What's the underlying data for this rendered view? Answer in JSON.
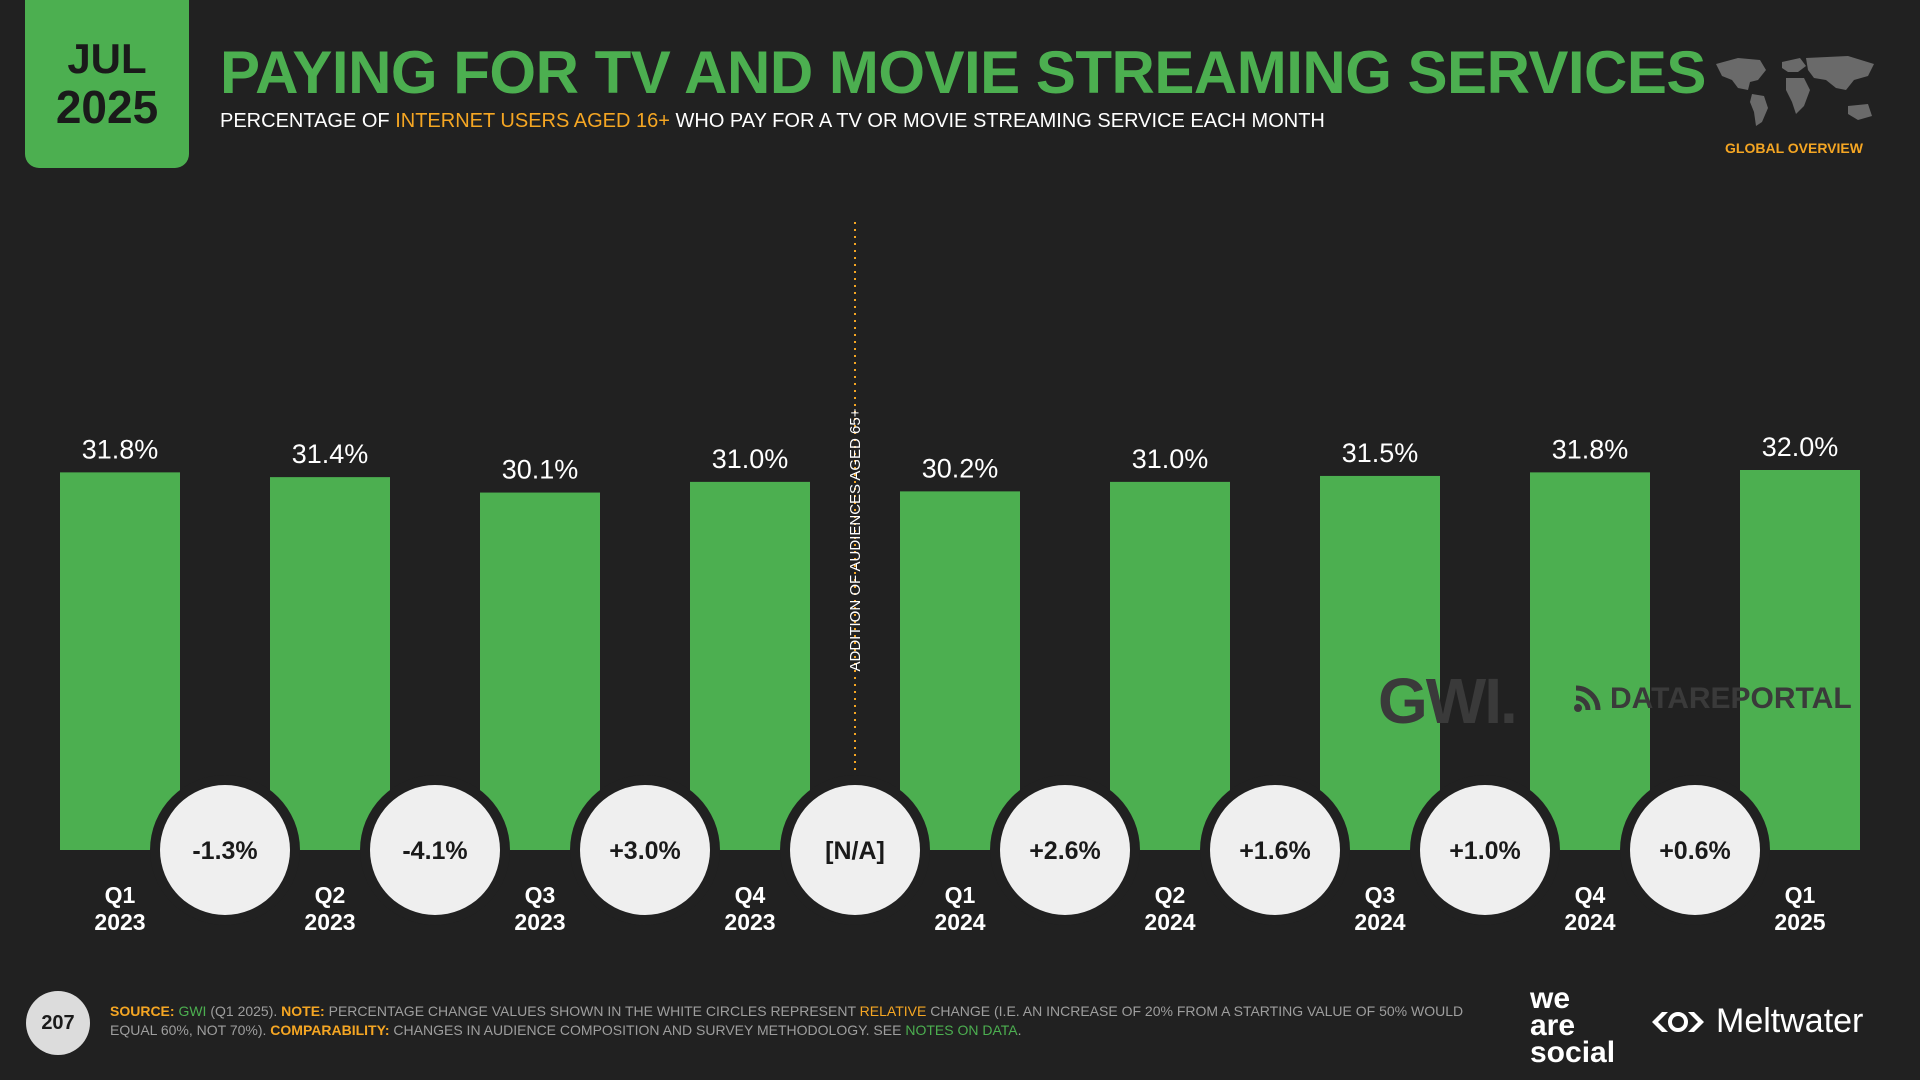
{
  "badge": {
    "month": "JUL",
    "year": "2025"
  },
  "header": {
    "title": "PAYING FOR TV AND MOVIE STREAMING SERVICES",
    "subtitle_pre": "PERCENTAGE OF ",
    "subtitle_highlight": "INTERNET USERS AGED 16+",
    "subtitle_post": " WHO PAY FOR A TV OR MOVIE STREAMING SERVICE EACH MONTH",
    "global_label": "GLOBAL OVERVIEW"
  },
  "chart_data": {
    "type": "bar",
    "categories": [
      "Q1 2023",
      "Q2 2023",
      "Q3 2023",
      "Q4 2023",
      "Q1 2024",
      "Q2 2024",
      "Q3 2024",
      "Q4 2024",
      "Q1 2025"
    ],
    "category_lines": [
      [
        "Q1",
        "2023"
      ],
      [
        "Q2",
        "2023"
      ],
      [
        "Q3",
        "2023"
      ],
      [
        "Q4",
        "2023"
      ],
      [
        "Q1",
        "2024"
      ],
      [
        "Q2",
        "2024"
      ],
      [
        "Q3",
        "2024"
      ],
      [
        "Q4",
        "2024"
      ],
      [
        "Q1",
        "2025"
      ]
    ],
    "values": [
      31.8,
      31.4,
      30.1,
      31.0,
      30.2,
      31.0,
      31.5,
      31.8,
      32.0
    ],
    "value_labels": [
      "31.8%",
      "31.4%",
      "30.1%",
      "31.0%",
      "30.2%",
      "31.0%",
      "31.5%",
      "31.8%",
      "32.0%"
    ],
    "changes": [
      "-1.3%",
      "-4.1%",
      "+3.0%",
      "[N/A]",
      "+2.6%",
      "+1.6%",
      "+1.0%",
      "+0.6%"
    ],
    "divider_note": "ADDITION OF AUDIENCES AGED 65+",
    "ylim": [
      0,
      32.0
    ],
    "bar_color": "#4caf50"
  },
  "watermarks": {
    "gwi": "GWI.",
    "datareportal": "DATAREPORTAL"
  },
  "footer": {
    "page_number": "207",
    "source_label": "SOURCE:",
    "source_name": "GWI",
    "source_rest": " (Q1 2025). ",
    "note_label": "NOTE:",
    "note_pre": " PERCENTAGE CHANGE VALUES SHOWN IN THE WHITE CIRCLES REPRESENT ",
    "note_highlight": "RELATIVE",
    "note_post": " CHANGE (I.E. AN INCREASE OF 20% FROM A STARTING VALUE OF 50% WOULD EQUAL 60%, NOT 70%). ",
    "comp_label": "COMPARABILITY:",
    "comp_text": " CHANGES IN AUDIENCE COMPOSITION AND SURVEY METHODOLOGY. SEE ",
    "comp_link": "NOTES ON DATA",
    "comp_end": "."
  },
  "brands": {
    "was_lines": [
      "we",
      "are",
      "social"
    ],
    "meltwater": "Meltwater"
  },
  "colors": {
    "accent": "#4caf50",
    "highlight": "#f5a623",
    "background": "#212121"
  }
}
